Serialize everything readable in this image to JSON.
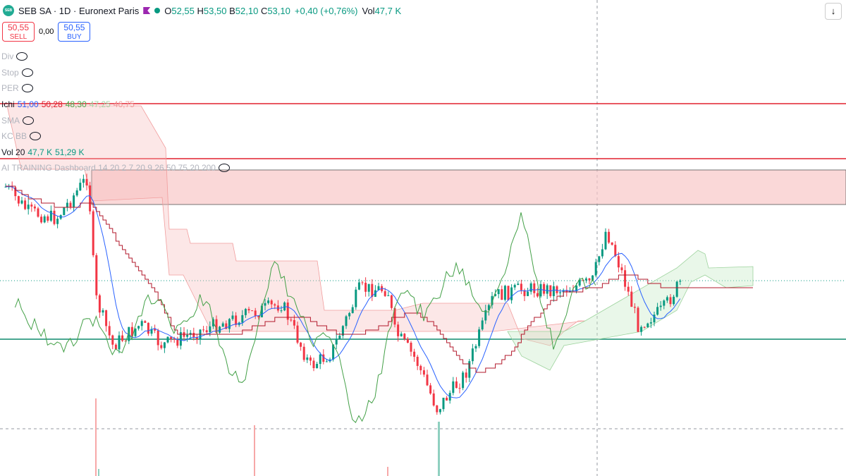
{
  "header": {
    "badge": "SEB",
    "symbol": "SEB SA · 1D · Euronext Paris",
    "ohlc": [
      {
        "label": "O",
        "value": "52,55"
      },
      {
        "label": "H",
        "value": "53,50"
      },
      {
        "label": "B",
        "value": "52,10"
      },
      {
        "label": "C",
        "value": "53,10"
      }
    ],
    "change": "+0,40 (+0,76%)",
    "volume": {
      "label": "Vol",
      "value": "47,7 K"
    }
  },
  "trade": {
    "sell": {
      "price": "50,55",
      "label": "SELL"
    },
    "spread": "0,00",
    "buy": {
      "price": "50,55",
      "label": "BUY"
    }
  },
  "indicators": [
    {
      "name": "Div",
      "values": []
    },
    {
      "name": "Stop",
      "values": []
    },
    {
      "name": "PER",
      "values": []
    },
    {
      "name": "Ichi",
      "values": [
        "51,00",
        "50,28",
        "48,30",
        "47,25",
        "46,75"
      ]
    },
    {
      "name": "SMA",
      "values": []
    },
    {
      "name": "KC BB",
      "values": []
    },
    {
      "name": "Vol 20",
      "values": [
        "47,7 K",
        "51,29 K"
      ]
    },
    {
      "name": "AI TRAINING Dashboard 14 20 2 7 20 9 26 50 75 20 200",
      "values": []
    }
  ]
}
